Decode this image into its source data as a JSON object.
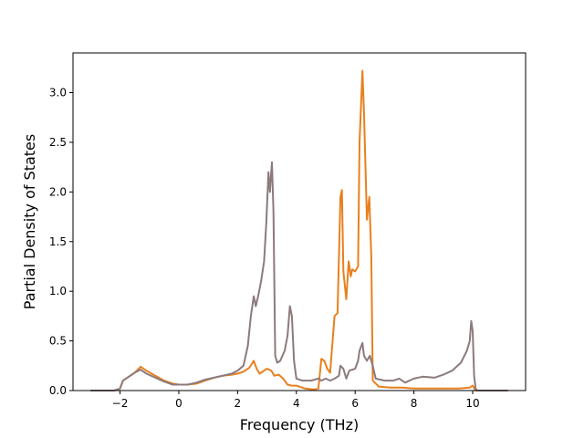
{
  "chart_data": {
    "type": "line",
    "xlabel": "Frequency (THz)",
    "ylabel": "Partial Density of States",
    "xlim": [
      -3.6,
      11.8
    ],
    "ylim": [
      0.0,
      3.4
    ],
    "xticks": [
      {
        "value": -2,
        "label": "−2"
      },
      {
        "value": 0,
        "label": "0"
      },
      {
        "value": 2,
        "label": "2"
      },
      {
        "value": 4,
        "label": "4"
      },
      {
        "value": 6,
        "label": "6"
      },
      {
        "value": 8,
        "label": "8"
      },
      {
        "value": 10,
        "label": "10"
      }
    ],
    "yticks": [
      {
        "value": 0.0,
        "label": "0.0"
      },
      {
        "value": 0.5,
        "label": "0.5"
      },
      {
        "value": 1.0,
        "label": "1.0"
      },
      {
        "value": 1.5,
        "label": "1.5"
      },
      {
        "value": 2.0,
        "label": "2.0"
      },
      {
        "value": 2.5,
        "label": "2.5"
      },
      {
        "value": 3.0,
        "label": "3.0"
      }
    ],
    "grid": false,
    "legend": "none",
    "series": [
      {
        "color": "#e8801e",
        "points": [
          [
            -3.0,
            0
          ],
          [
            -2.2,
            0
          ],
          [
            -2.0,
            0.02
          ],
          [
            -1.9,
            0.1
          ],
          [
            -1.7,
            0.14
          ],
          [
            -1.5,
            0.18
          ],
          [
            -1.3,
            0.24
          ],
          [
            -1.1,
            0.2
          ],
          [
            -0.8,
            0.15
          ],
          [
            -0.5,
            0.1
          ],
          [
            -0.2,
            0.07
          ],
          [
            0.0,
            0.06
          ],
          [
            0.3,
            0.06
          ],
          [
            0.6,
            0.07
          ],
          [
            0.9,
            0.1
          ],
          [
            1.2,
            0.13
          ],
          [
            1.5,
            0.15
          ],
          [
            1.8,
            0.16
          ],
          [
            2.0,
            0.17
          ],
          [
            2.2,
            0.19
          ],
          [
            2.4,
            0.23
          ],
          [
            2.55,
            0.3
          ],
          [
            2.65,
            0.22
          ],
          [
            2.75,
            0.17
          ],
          [
            2.9,
            0.2
          ],
          [
            3.0,
            0.22
          ],
          [
            3.15,
            0.2
          ],
          [
            3.25,
            0.15
          ],
          [
            3.4,
            0.16
          ],
          [
            3.55,
            0.12
          ],
          [
            3.7,
            0.06
          ],
          [
            3.85,
            0.05
          ],
          [
            4.0,
            0.05
          ],
          [
            4.3,
            0.02
          ],
          [
            4.6,
            0.01
          ],
          [
            4.75,
            0.02
          ],
          [
            4.85,
            0.32
          ],
          [
            4.95,
            0.3
          ],
          [
            5.05,
            0.22
          ],
          [
            5.15,
            0.18
          ],
          [
            5.3,
            0.75
          ],
          [
            5.4,
            0.78
          ],
          [
            5.5,
            1.95
          ],
          [
            5.55,
            2.02
          ],
          [
            5.6,
            1.2
          ],
          [
            5.7,
            0.92
          ],
          [
            5.78,
            1.3
          ],
          [
            5.85,
            1.15
          ],
          [
            5.9,
            1.22
          ],
          [
            6.0,
            1.2
          ],
          [
            6.1,
            1.25
          ],
          [
            6.15,
            2.5
          ],
          [
            6.25,
            3.22
          ],
          [
            6.3,
            2.8
          ],
          [
            6.4,
            1.72
          ],
          [
            6.48,
            1.95
          ],
          [
            6.55,
            1.35
          ],
          [
            6.6,
            0.1
          ],
          [
            6.8,
            0.04
          ],
          [
            7.2,
            0.03
          ],
          [
            7.6,
            0.03
          ],
          [
            8.0,
            0.02
          ],
          [
            8.5,
            0.02
          ],
          [
            9.0,
            0.02
          ],
          [
            9.5,
            0.02
          ],
          [
            9.9,
            0.03
          ],
          [
            10.0,
            0.05
          ],
          [
            10.1,
            0.0
          ],
          [
            11.2,
            0.0
          ]
        ]
      },
      {
        "color": "#8c7a7c",
        "points": [
          [
            -3.0,
            0
          ],
          [
            -2.2,
            0
          ],
          [
            -2.0,
            0.02
          ],
          [
            -1.9,
            0.1
          ],
          [
            -1.7,
            0.14
          ],
          [
            -1.5,
            0.18
          ],
          [
            -1.3,
            0.21
          ],
          [
            -1.1,
            0.17
          ],
          [
            -0.8,
            0.13
          ],
          [
            -0.5,
            0.09
          ],
          [
            -0.2,
            0.06
          ],
          [
            0.0,
            0.06
          ],
          [
            0.3,
            0.06
          ],
          [
            0.6,
            0.08
          ],
          [
            0.9,
            0.11
          ],
          [
            1.2,
            0.13
          ],
          [
            1.5,
            0.15
          ],
          [
            1.8,
            0.17
          ],
          [
            2.0,
            0.2
          ],
          [
            2.2,
            0.25
          ],
          [
            2.35,
            0.45
          ],
          [
            2.45,
            0.75
          ],
          [
            2.55,
            0.95
          ],
          [
            2.62,
            0.85
          ],
          [
            2.7,
            0.95
          ],
          [
            2.8,
            1.1
          ],
          [
            2.9,
            1.3
          ],
          [
            2.98,
            1.7
          ],
          [
            3.05,
            2.2
          ],
          [
            3.1,
            2.0
          ],
          [
            3.17,
            2.3
          ],
          [
            3.22,
            1.8
          ],
          [
            3.28,
            0.35
          ],
          [
            3.35,
            0.28
          ],
          [
            3.45,
            0.3
          ],
          [
            3.6,
            0.4
          ],
          [
            3.7,
            0.55
          ],
          [
            3.78,
            0.85
          ],
          [
            3.85,
            0.75
          ],
          [
            3.92,
            0.3
          ],
          [
            4.0,
            0.12
          ],
          [
            4.2,
            0.1
          ],
          [
            4.5,
            0.1
          ],
          [
            4.75,
            0.12
          ],
          [
            4.85,
            0.1
          ],
          [
            5.0,
            0.12
          ],
          [
            5.15,
            0.1
          ],
          [
            5.3,
            0.12
          ],
          [
            5.45,
            0.15
          ],
          [
            5.5,
            0.25
          ],
          [
            5.6,
            0.22
          ],
          [
            5.7,
            0.12
          ],
          [
            5.8,
            0.2
          ],
          [
            6.0,
            0.22
          ],
          [
            6.1,
            0.3
          ],
          [
            6.15,
            0.4
          ],
          [
            6.25,
            0.48
          ],
          [
            6.3,
            0.35
          ],
          [
            6.4,
            0.3
          ],
          [
            6.5,
            0.35
          ],
          [
            6.6,
            0.25
          ],
          [
            6.7,
            0.12
          ],
          [
            7.0,
            0.1
          ],
          [
            7.3,
            0.1
          ],
          [
            7.5,
            0.12
          ],
          [
            7.7,
            0.08
          ],
          [
            8.0,
            0.12
          ],
          [
            8.3,
            0.14
          ],
          [
            8.7,
            0.13
          ],
          [
            9.0,
            0.16
          ],
          [
            9.3,
            0.2
          ],
          [
            9.6,
            0.28
          ],
          [
            9.8,
            0.4
          ],
          [
            9.9,
            0.5
          ],
          [
            9.95,
            0.7
          ],
          [
            10.0,
            0.6
          ],
          [
            10.05,
            0.15
          ],
          [
            10.1,
            0.02
          ],
          [
            10.15,
            0.0
          ],
          [
            11.2,
            0.0
          ]
        ]
      }
    ]
  }
}
